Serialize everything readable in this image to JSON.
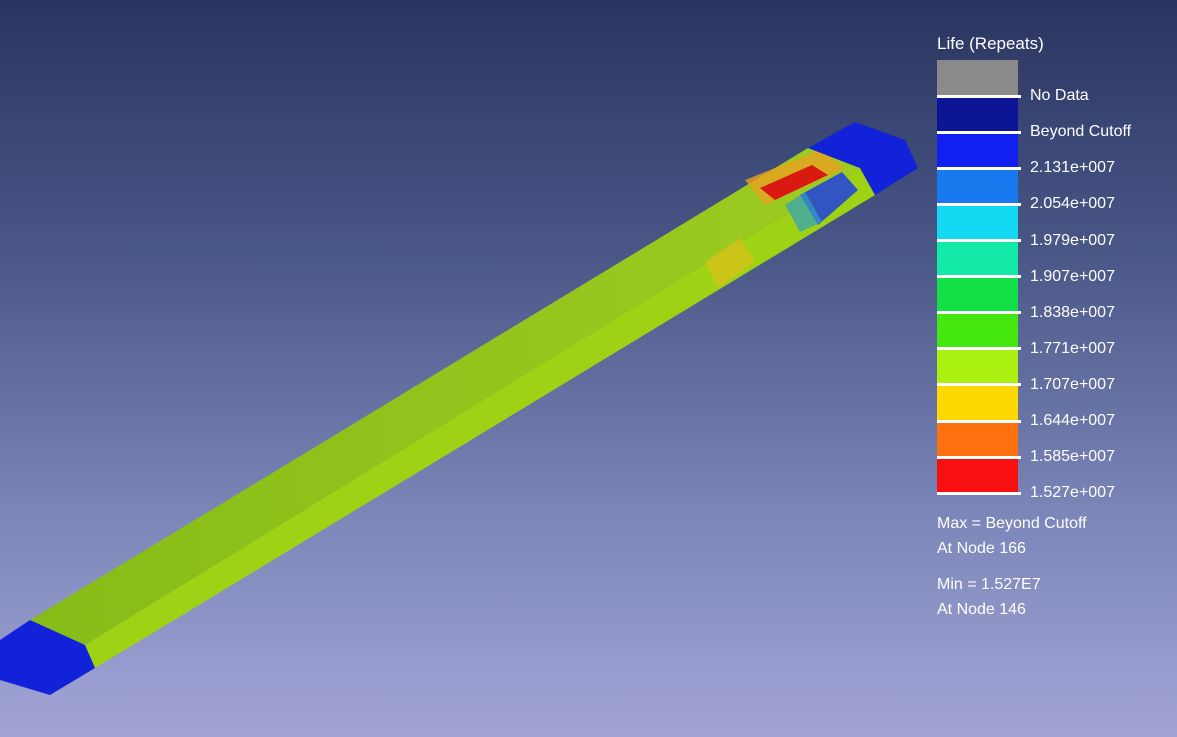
{
  "legend": {
    "title": "Life (Repeats)",
    "bands": [
      {
        "color": "#8a8a8a"
      },
      {
        "color": "#0b1596"
      },
      {
        "color": "#1020f0"
      },
      {
        "color": "#1878ee"
      },
      {
        "color": "#12d8f2"
      },
      {
        "color": "#14eaa8"
      },
      {
        "color": "#12e046"
      },
      {
        "color": "#44e810"
      },
      {
        "color": "#aaf010"
      },
      {
        "color": "#ffd800"
      },
      {
        "color": "#ff7010"
      },
      {
        "color": "#f81010"
      }
    ],
    "labels": [
      "No Data",
      "Beyond Cutoff",
      "2.131e+007",
      "2.054e+007",
      "1.979e+007",
      "1.907e+007",
      "1.838e+007",
      "1.771e+007",
      "1.707e+007",
      "1.644e+007",
      "1.585e+007",
      "1.527e+007"
    ],
    "max_line1": "Max = Beyond Cutoff",
    "max_line2": "At Node 166",
    "min_line1": "Min = 1.527E7",
    "min_line2": "At Node 146"
  },
  "model": {
    "beam_color": "#8cc814",
    "end_cap_color": "#1222d8",
    "hotspot_color": "#e02010"
  }
}
